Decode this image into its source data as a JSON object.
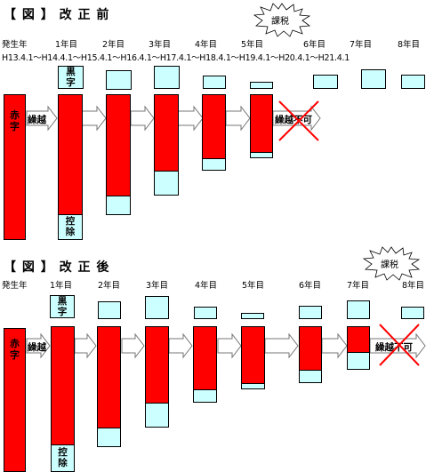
{
  "before": {
    "title": "【 図 】 改 正 前",
    "tax_label": "課税",
    "years": [
      "発生年",
      "1年目",
      "2年目",
      "3年目",
      "4年目",
      "5年目",
      "6年目",
      "7年目",
      "8年目"
    ],
    "dates": "H13.4.1～H14.4.1～H15.4.1～H16.4.1～H17.4.1～H18.4.1～H19.4.1～H20.4.1～H21.4.1",
    "loss_label": "赤\n字",
    "carry_label": "繰越",
    "black_label": "黒\n字",
    "deduct_label": "控\n除",
    "no_carry_label": "繰越不可"
  },
  "after": {
    "title": "【 図 】 改 正 後",
    "tax_label": "課税",
    "years": [
      "発生年",
      "1年目",
      "2年目",
      "3年目",
      "4年目",
      "5年目",
      "6年目",
      "7年目",
      "8年目"
    ],
    "loss_label": "赤\n字",
    "carry_label": "繰越",
    "black_label": "黒\n字",
    "deduct_label": "控\n除",
    "no_carry_label": "繰越不可"
  },
  "colors": {
    "loss": "#ff0000",
    "profit": "#ccffff",
    "cross": "#ff0000"
  }
}
